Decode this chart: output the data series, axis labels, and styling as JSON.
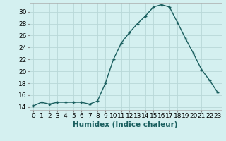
{
  "x": [
    0,
    1,
    2,
    3,
    4,
    5,
    6,
    7,
    8,
    9,
    10,
    11,
    12,
    13,
    14,
    15,
    16,
    17,
    18,
    19,
    20,
    21,
    22,
    23
  ],
  "y": [
    14.2,
    14.8,
    14.5,
    14.8,
    14.8,
    14.8,
    14.8,
    14.5,
    15.0,
    18.0,
    22.0,
    24.8,
    26.5,
    28.0,
    29.3,
    30.8,
    31.2,
    30.8,
    28.2,
    25.5,
    23.0,
    20.3,
    18.5,
    16.5
  ],
  "line_color": "#1a5f5f",
  "marker": "+",
  "marker_size": 3,
  "background_color": "#d4f0f0",
  "grid_color": "#b8d8d8",
  "xlabel": "Humidex (Indice chaleur)",
  "xlim": [
    -0.5,
    23.5
  ],
  "ylim": [
    13.5,
    31.5
  ],
  "yticks": [
    14,
    16,
    18,
    20,
    22,
    24,
    26,
    28,
    30
  ],
  "xticks": [
    0,
    1,
    2,
    3,
    4,
    5,
    6,
    7,
    8,
    9,
    10,
    11,
    12,
    13,
    14,
    15,
    16,
    17,
    18,
    19,
    20,
    21,
    22,
    23
  ],
  "tick_label_fontsize": 6.5,
  "xlabel_fontsize": 7.5,
  "linewidth": 1.0,
  "markeredgewidth": 1.0
}
